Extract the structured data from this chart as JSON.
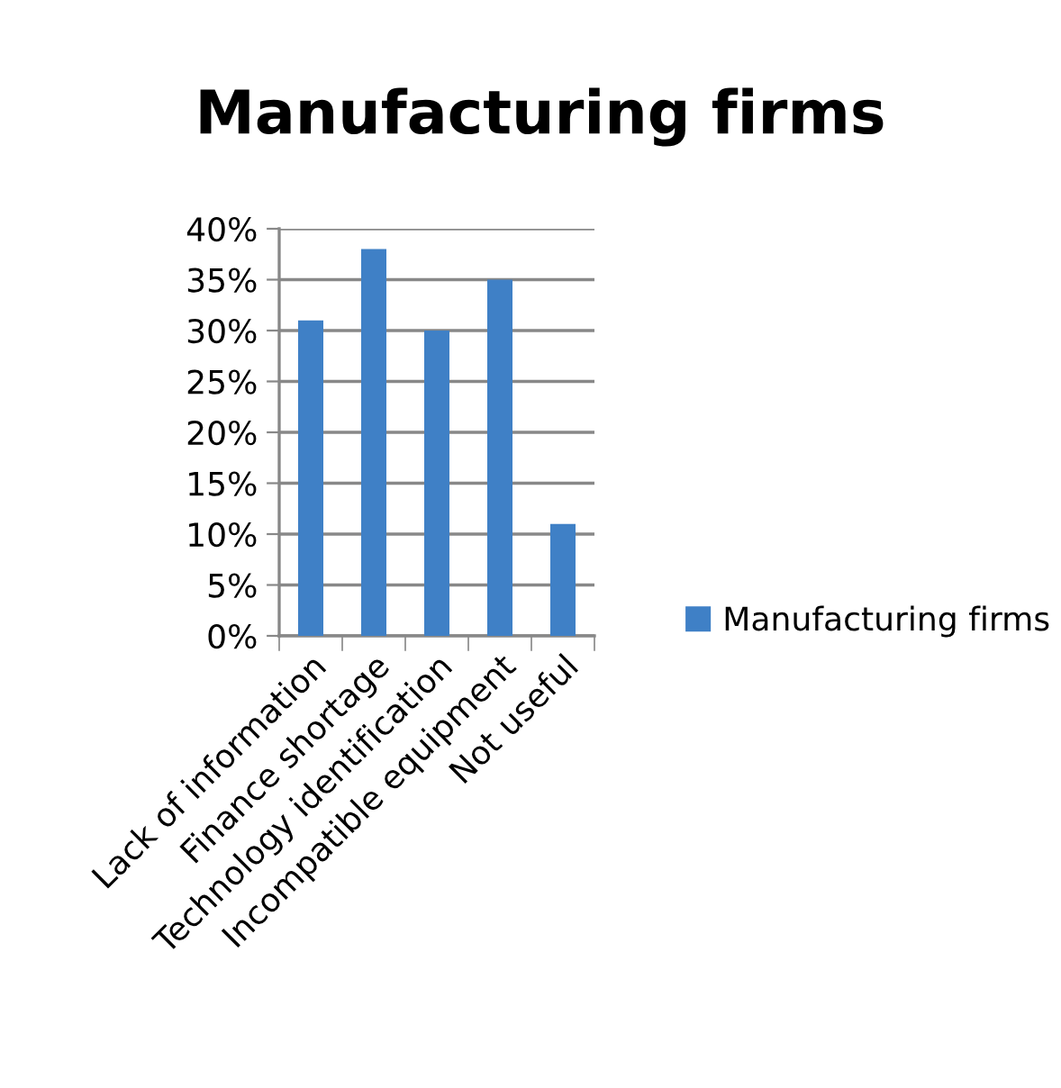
{
  "chart_data": {
    "type": "bar",
    "title": "Manufacturing firms",
    "categories": [
      "Lack of information",
      "Finance shortage",
      "Technology identification",
      "Incompatible equipment",
      "Not useful"
    ],
    "series": [
      {
        "name": "Manufacturing firms",
        "color": "#3f80c6",
        "values": [
          31,
          38,
          30,
          35,
          11
        ]
      }
    ],
    "ylim": [
      0,
      40
    ],
    "yticks": [
      {
        "value": 0,
        "label": "0%"
      },
      {
        "value": 5,
        "label": "5%"
      },
      {
        "value": 10,
        "label": "10%"
      },
      {
        "value": 15,
        "label": "15%"
      },
      {
        "value": 20,
        "label": "20%"
      },
      {
        "value": 25,
        "label": "25%"
      },
      {
        "value": 30,
        "label": "30%"
      },
      {
        "value": 35,
        "label": "35%"
      },
      {
        "value": 40,
        "label": "40%"
      }
    ],
    "grid": "y",
    "legend": "right"
  }
}
